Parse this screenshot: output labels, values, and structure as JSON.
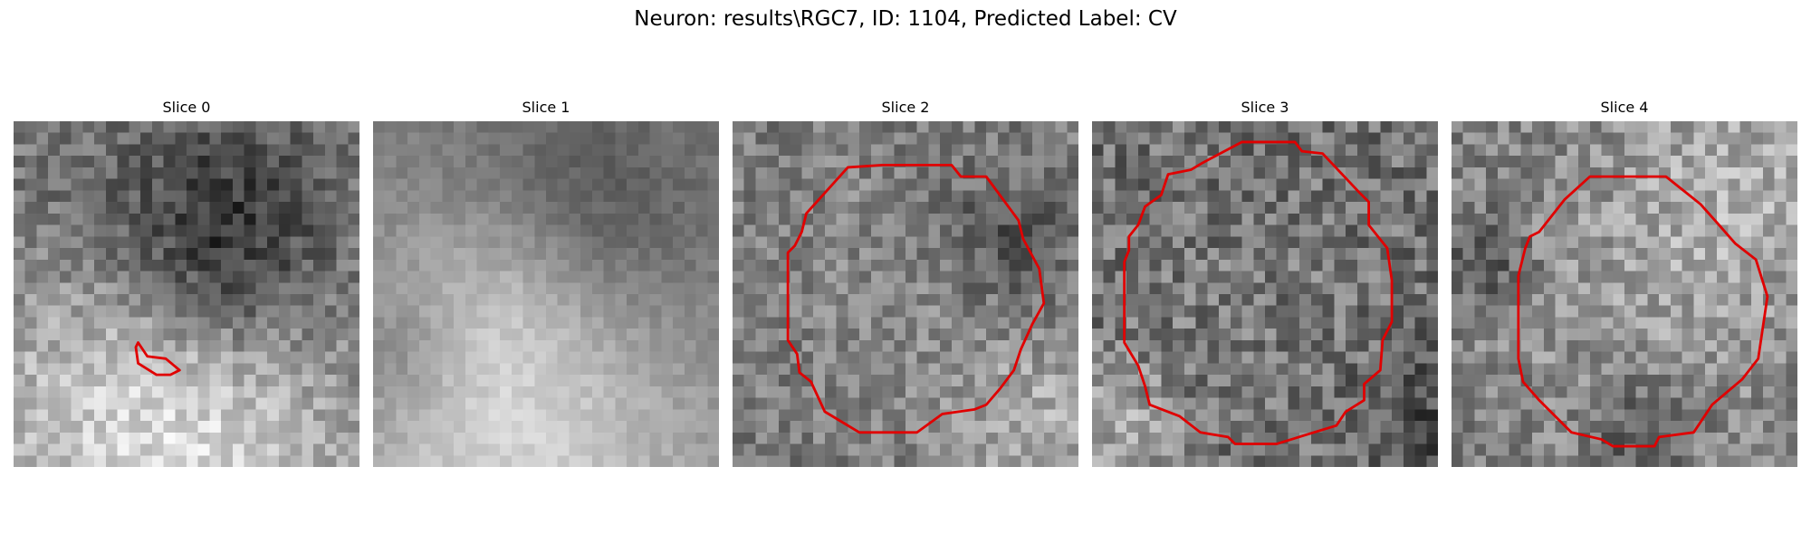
{
  "figure": {
    "title": "Neuron: results\\RGC7, ID: 1104, Predicted Label: CV",
    "contour_color": "#e00000",
    "colormap": "grayscale",
    "grid_size": 30,
    "slices": [
      {
        "label": "Slice 0",
        "contour": [
          [
            10.8,
            19.2
          ],
          [
            11.6,
            20.4
          ],
          [
            13.2,
            20.6
          ],
          [
            14.4,
            21.6
          ],
          [
            13.6,
            22.0
          ],
          [
            12.4,
            22.0
          ],
          [
            10.8,
            21.0
          ],
          [
            10.6,
            19.6
          ]
        ]
      },
      {
        "label": "Slice 1",
        "contour": []
      },
      {
        "label": "Slice 2",
        "contour": [
          [
            10,
            4
          ],
          [
            13,
            3.8
          ],
          [
            19,
            3.8
          ],
          [
            19.8,
            4.8
          ],
          [
            22,
            4.8
          ],
          [
            24.8,
            8.6
          ],
          [
            25.2,
            10.2
          ],
          [
            26.6,
            12.8
          ],
          [
            27,
            15.8
          ],
          [
            26,
            17.6
          ],
          [
            25,
            19.8
          ],
          [
            24.4,
            21.6
          ],
          [
            23.2,
            23.2
          ],
          [
            22,
            24.6
          ],
          [
            21,
            25
          ],
          [
            18.2,
            25.4
          ],
          [
            16,
            27
          ],
          [
            11,
            27
          ],
          [
            8,
            25.2
          ],
          [
            6.8,
            22.6
          ],
          [
            5.8,
            21.8
          ],
          [
            5.6,
            20.2
          ],
          [
            4.8,
            19
          ],
          [
            4.8,
            11.4
          ],
          [
            5.4,
            10.8
          ],
          [
            6,
            9.6
          ],
          [
            6.4,
            8
          ]
        ]
      },
      {
        "label": "Slice 3",
        "contour": [
          [
            9.6,
            3.6
          ],
          [
            13,
            1.8
          ],
          [
            17.6,
            1.8
          ],
          [
            18.2,
            2.6
          ],
          [
            20,
            2.8
          ],
          [
            23.2,
            6.2
          ],
          [
            24,
            7
          ],
          [
            24,
            9
          ],
          [
            25.6,
            11
          ],
          [
            26,
            13.8
          ],
          [
            26,
            17.4
          ],
          [
            25.2,
            19
          ],
          [
            25,
            21.6
          ],
          [
            23.6,
            22.8
          ],
          [
            23.6,
            24.2
          ],
          [
            22,
            25.2
          ],
          [
            21.2,
            26.4
          ],
          [
            18.6,
            27.2
          ],
          [
            16,
            28
          ],
          [
            12.4,
            28
          ],
          [
            11.8,
            27.4
          ],
          [
            9.4,
            27
          ],
          [
            7.6,
            25.6
          ],
          [
            5,
            24.6
          ],
          [
            4.6,
            23
          ],
          [
            4,
            21.2
          ],
          [
            2.8,
            19.2
          ],
          [
            2.8,
            12.2
          ],
          [
            3.2,
            11.2
          ],
          [
            3.2,
            10
          ],
          [
            4,
            9
          ],
          [
            4.6,
            7.4
          ],
          [
            6,
            6.4
          ],
          [
            6.6,
            4.6
          ],
          [
            8.6,
            4.2
          ]
        ]
      },
      {
        "label": "Slice 4",
        "contour": [
          [
            12,
            4.8
          ],
          [
            18.6,
            4.8
          ],
          [
            21.6,
            7.2
          ],
          [
            23.2,
            9
          ],
          [
            24.6,
            10.6
          ],
          [
            26.4,
            12
          ],
          [
            27.4,
            15.2
          ],
          [
            26.6,
            20.6
          ],
          [
            25.2,
            22.4
          ],
          [
            22.6,
            24.6
          ],
          [
            21,
            27
          ],
          [
            18,
            27.4
          ],
          [
            17.6,
            28.2
          ],
          [
            14,
            28.2
          ],
          [
            13,
            27.6
          ],
          [
            10.4,
            27
          ],
          [
            7.6,
            24.2
          ],
          [
            6.2,
            22.6
          ],
          [
            5.8,
            20.6
          ],
          [
            5.8,
            13.4
          ],
          [
            6.4,
            11
          ],
          [
            6.8,
            10
          ],
          [
            7.6,
            9.6
          ],
          [
            9.8,
            6.8
          ]
        ]
      }
    ]
  }
}
